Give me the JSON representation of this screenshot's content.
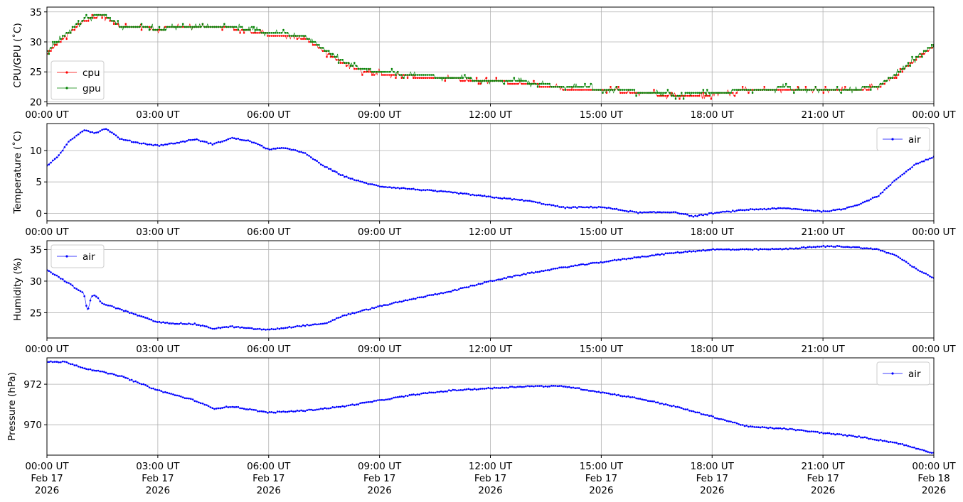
{
  "x_ticks_time": [
    "00:00 UT",
    "03:00 UT",
    "06:00 UT",
    "09:00 UT",
    "12:00 UT",
    "15:00 UT",
    "18:00 UT",
    "21:00 UT",
    "00:00 UT"
  ],
  "x_ticks_date": [
    "Feb 17",
    "Feb 17",
    "Feb 17",
    "Feb 17",
    "Feb 17",
    "Feb 17",
    "Feb 17",
    "Feb 17",
    "Feb 18"
  ],
  "x_ticks_year": [
    "2026",
    "2026",
    "2026",
    "2026",
    "2026",
    "2026",
    "2026",
    "2026",
    "2026"
  ],
  "chart_data": [
    {
      "type": "line",
      "ylabel": "CPU/GPU (˚C)",
      "x_unit": "hours UT",
      "xlim": [
        0,
        24
      ],
      "ylim": [
        19.7,
        35.8
      ],
      "yticks": [
        20,
        25,
        30,
        35
      ],
      "grid": true,
      "legend_position": "lower-left",
      "series": [
        {
          "name": "cpu",
          "color": "#ff0000",
          "x": [
            0,
            0.5,
            1.0,
            1.5,
            2.0,
            3.0,
            4.0,
            5.0,
            6.0,
            6.5,
            7.0,
            7.5,
            8.0,
            8.5,
            9.0,
            10.0,
            11.0,
            12.0,
            13.0,
            14.0,
            15.0,
            16.0,
            17.0,
            18.0,
            19.0,
            20.0,
            21.0,
            22.0,
            22.5,
            23.0,
            23.5,
            24.0
          ],
          "y": [
            28.0,
            31.0,
            33.5,
            34.5,
            32.5,
            32.2,
            32.5,
            32.3,
            31.2,
            31.0,
            30.5,
            28.5,
            26.5,
            25.2,
            24.8,
            24.2,
            23.8,
            23.5,
            23.0,
            22.2,
            22.0,
            21.5,
            21.0,
            21.2,
            22.0,
            22.2,
            21.8,
            22.0,
            22.5,
            24.5,
            27.0,
            29.3
          ]
        },
        {
          "name": "gpu",
          "color": "#008000",
          "x": [
            0,
            0.5,
            1.0,
            1.5,
            2.0,
            3.0,
            4.0,
            5.0,
            6.0,
            6.5,
            7.0,
            7.5,
            8.0,
            8.5,
            9.0,
            10.0,
            11.0,
            12.0,
            13.0,
            14.0,
            15.0,
            16.0,
            17.0,
            18.0,
            19.0,
            20.0,
            21.0,
            22.0,
            22.5,
            23.0,
            23.5,
            24.0
          ],
          "y": [
            28.3,
            31.3,
            33.8,
            34.7,
            32.6,
            32.2,
            32.5,
            32.6,
            31.5,
            31.3,
            30.8,
            28.8,
            26.8,
            25.5,
            25.0,
            24.5,
            24.0,
            23.5,
            23.3,
            22.4,
            22.2,
            21.7,
            21.2,
            21.4,
            22.1,
            22.3,
            21.9,
            22.2,
            22.7,
            24.7,
            27.2,
            29.6
          ]
        }
      ]
    },
    {
      "type": "line",
      "ylabel": "Temperature (˚C)",
      "x_unit": "hours UT",
      "xlim": [
        0,
        24
      ],
      "ylim": [
        -1.2,
        14.3
      ],
      "yticks": [
        0,
        5,
        10
      ],
      "grid": true,
      "legend_position": "upper-right",
      "series": [
        {
          "name": "air",
          "color": "#0000ff",
          "x": [
            0,
            0.3,
            0.6,
            1.0,
            1.3,
            1.6,
            2.0,
            2.5,
            3.0,
            3.5,
            4.0,
            4.5,
            5.0,
            5.5,
            6.0,
            6.5,
            7.0,
            7.5,
            8.0,
            8.5,
            9.0,
            10.0,
            11.0,
            12.0,
            13.0,
            14.0,
            15.0,
            16.0,
            17.0,
            17.5,
            18.0,
            19.0,
            20.0,
            21.0,
            21.5,
            22.0,
            22.5,
            23.0,
            23.5,
            24.0
          ],
          "y": [
            7.6,
            9.0,
            11.5,
            13.3,
            12.8,
            13.5,
            11.8,
            11.2,
            10.8,
            11.2,
            11.8,
            11.0,
            12.0,
            11.5,
            10.2,
            10.4,
            9.5,
            7.5,
            6.0,
            5.0,
            4.3,
            3.8,
            3.3,
            2.6,
            2.0,
            0.9,
            1.0,
            0.1,
            0.2,
            -0.5,
            0.0,
            0.6,
            0.8,
            0.3,
            0.6,
            1.5,
            2.8,
            5.5,
            7.8,
            9.0
          ]
        }
      ]
    },
    {
      "type": "line",
      "ylabel": "Humidity (%)",
      "x_unit": "hours UT",
      "xlim": [
        0,
        24
      ],
      "ylim": [
        21.0,
        36.4
      ],
      "yticks": [
        25,
        30,
        35
      ],
      "grid": true,
      "legend_position": "upper-left",
      "series": [
        {
          "name": "air",
          "color": "#0000ff",
          "x": [
            0,
            0.5,
            1.0,
            1.1,
            1.2,
            1.3,
            1.5,
            2.0,
            2.5,
            3.0,
            3.5,
            4.0,
            4.5,
            5.0,
            5.5,
            6.0,
            7.0,
            7.5,
            8.0,
            9.0,
            10.0,
            11.0,
            12.0,
            13.0,
            14.0,
            15.0,
            16.0,
            17.0,
            18.0,
            19.0,
            20.0,
            21.0,
            21.5,
            22.0,
            22.5,
            23.0,
            23.5,
            24.0
          ],
          "y": [
            31.8,
            30.0,
            28.0,
            25.2,
            27.5,
            27.8,
            26.5,
            25.5,
            24.5,
            23.5,
            23.3,
            23.2,
            22.5,
            22.8,
            22.5,
            22.3,
            23.0,
            23.2,
            24.5,
            26.0,
            27.3,
            28.5,
            30.0,
            31.2,
            32.2,
            33.0,
            33.8,
            34.5,
            35.0,
            35.0,
            35.1,
            35.5,
            35.5,
            35.3,
            35.0,
            34.0,
            32.0,
            30.5
          ]
        }
      ]
    },
    {
      "type": "line",
      "ylabel": "Pressure (hPa)",
      "x_unit": "hours UT",
      "xlim": [
        0,
        24
      ],
      "ylim": [
        968.5,
        973.3
      ],
      "yticks": [
        970,
        972
      ],
      "grid": true,
      "legend_position": "upper-right",
      "series": [
        {
          "name": "air",
          "color": "#0000ff",
          "x": [
            0,
            0.5,
            1.0,
            2.0,
            3.0,
            4.0,
            4.5,
            5.0,
            6.0,
            7.0,
            8.0,
            9.0,
            10.0,
            11.0,
            12.0,
            13.0,
            14.0,
            15.0,
            16.0,
            17.0,
            18.0,
            19.0,
            20.0,
            21.0,
            22.0,
            23.0,
            24.0
          ],
          "y": [
            973.1,
            973.1,
            972.8,
            972.4,
            971.7,
            971.2,
            970.8,
            970.9,
            970.6,
            970.7,
            970.9,
            971.2,
            971.5,
            971.7,
            971.8,
            971.9,
            971.9,
            971.6,
            971.3,
            970.9,
            970.4,
            969.9,
            969.8,
            969.6,
            969.4,
            969.1,
            968.6
          ]
        }
      ]
    }
  ]
}
